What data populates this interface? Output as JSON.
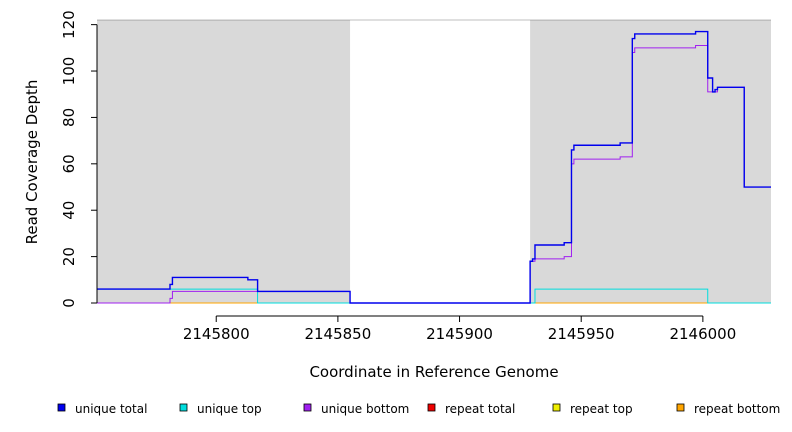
{
  "chart_data": {
    "type": "line",
    "title": "",
    "xlabel": "Coordinate in Reference Genome",
    "ylabel": "Read Coverage Depth",
    "xlim": [
      2145751,
      2146028
    ],
    "ylim": [
      0,
      122
    ],
    "x_ticks": [
      2145800,
      2145850,
      2145900,
      2145950,
      2146000
    ],
    "y_ticks": [
      0,
      20,
      40,
      60,
      80,
      100,
      120
    ],
    "legend_position": "bottom",
    "shaded_regions": [
      {
        "x0": 2145751,
        "x1": 2145855,
        "color": "#d9d9d9"
      },
      {
        "x0": 2145929,
        "x1": 2146028,
        "color": "#d9d9d9"
      }
    ],
    "series": [
      {
        "name": "unique total",
        "color": "#0000ee",
        "points": [
          [
            2145751,
            6
          ],
          [
            2145781,
            6
          ],
          [
            2145781,
            8
          ],
          [
            2145782,
            8
          ],
          [
            2145782,
            11
          ],
          [
            2145813,
            11
          ],
          [
            2145813,
            10
          ],
          [
            2145817,
            10
          ],
          [
            2145817,
            5
          ],
          [
            2145855,
            5
          ],
          [
            2145855,
            0
          ],
          [
            2145929,
            0
          ],
          [
            2145929,
            18
          ],
          [
            2145930,
            18
          ],
          [
            2145930,
            19
          ],
          [
            2145931,
            19
          ],
          [
            2145931,
            25
          ],
          [
            2145943,
            25
          ],
          [
            2145943,
            26
          ],
          [
            2145946,
            26
          ],
          [
            2145946,
            66
          ],
          [
            2145947,
            66
          ],
          [
            2145947,
            68
          ],
          [
            2145966,
            68
          ],
          [
            2145966,
            69
          ],
          [
            2145971,
            69
          ],
          [
            2145971,
            114
          ],
          [
            2145972,
            114
          ],
          [
            2145972,
            116
          ],
          [
            2145997,
            116
          ],
          [
            2145997,
            117
          ],
          [
            2146002,
            117
          ],
          [
            2146002,
            97
          ],
          [
            2146004,
            97
          ],
          [
            2146004,
            91
          ],
          [
            2146005,
            91
          ],
          [
            2146005,
            92
          ],
          [
            2146006,
            92
          ],
          [
            2146006,
            93
          ],
          [
            2146017,
            93
          ],
          [
            2146017,
            50
          ],
          [
            2146028,
            50
          ]
        ]
      },
      {
        "name": "unique top",
        "color": "#00dddd",
        "points": [
          [
            2145751,
            6
          ],
          [
            2145782,
            6
          ],
          [
            2145782,
            6
          ],
          [
            2145817,
            6
          ],
          [
            2145817,
            0
          ],
          [
            2145931,
            0
          ],
          [
            2145931,
            6
          ],
          [
            2146002,
            6
          ],
          [
            2146002,
            0
          ],
          [
            2146028,
            0
          ]
        ]
      },
      {
        "name": "unique bottom",
        "color": "#a020f0",
        "points": [
          [
            2145751,
            0
          ],
          [
            2145781,
            0
          ],
          [
            2145781,
            2
          ],
          [
            2145782,
            2
          ],
          [
            2145782,
            5
          ],
          [
            2145855,
            5
          ],
          [
            2145855,
            0
          ],
          [
            2145929,
            0
          ],
          [
            2145929,
            18
          ],
          [
            2145931,
            18
          ],
          [
            2145931,
            19
          ],
          [
            2145943,
            19
          ],
          [
            2145943,
            20
          ],
          [
            2145946,
            20
          ],
          [
            2145946,
            60
          ],
          [
            2145947,
            60
          ],
          [
            2145947,
            62
          ],
          [
            2145966,
            62
          ],
          [
            2145966,
            63
          ],
          [
            2145971,
            63
          ],
          [
            2145971,
            108
          ],
          [
            2145972,
            108
          ],
          [
            2145972,
            110
          ],
          [
            2145997,
            110
          ],
          [
            2145997,
            111
          ],
          [
            2146002,
            111
          ],
          [
            2146002,
            91
          ],
          [
            2146004,
            91
          ],
          [
            2146004,
            91
          ],
          [
            2146006,
            91
          ],
          [
            2146006,
            93
          ],
          [
            2146017,
            93
          ],
          [
            2146017,
            50
          ],
          [
            2146028,
            50
          ]
        ]
      },
      {
        "name": "repeat total",
        "color": "#ee0000",
        "points": [
          [
            2145751,
            0
          ],
          [
            2146028,
            0
          ]
        ]
      },
      {
        "name": "repeat top",
        "color": "#eeee00",
        "points": [
          [
            2145751,
            0
          ],
          [
            2146028,
            0
          ]
        ]
      },
      {
        "name": "repeat bottom",
        "color": "#ffa500",
        "points": [
          [
            2145751,
            0
          ],
          [
            2146028,
            0
          ]
        ]
      }
    ]
  }
}
